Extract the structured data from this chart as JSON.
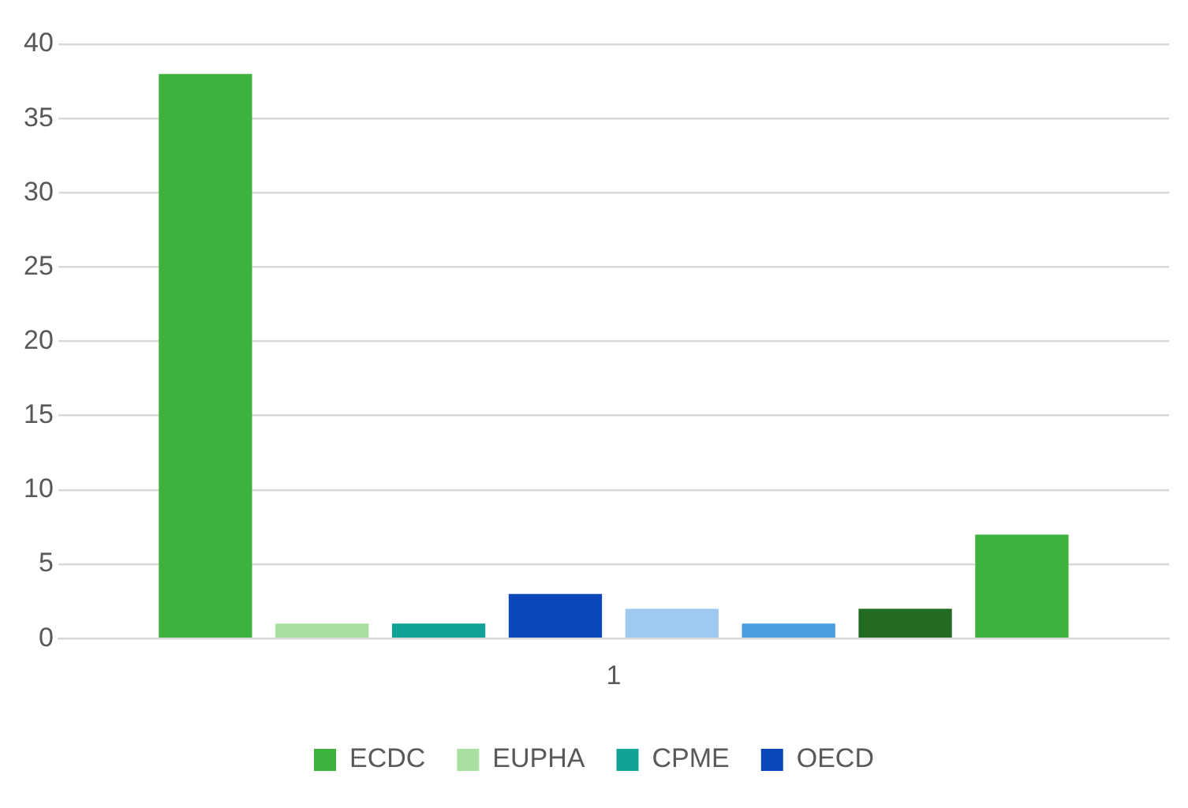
{
  "chart_data": {
    "type": "bar",
    "categories": [
      "1"
    ],
    "series": [
      {
        "name": "ECDC",
        "color": "#3db33d",
        "values": [
          38
        ]
      },
      {
        "name": "EUPHA",
        "color": "#a8e0a0",
        "values": [
          1
        ]
      },
      {
        "name": "CPME",
        "color": "#12a398",
        "values": [
          1
        ]
      },
      {
        "name": "OECD",
        "color": "#0a47b8",
        "values": [
          3
        ]
      },
      {
        "color": "#9fc9ef",
        "values": [
          2
        ]
      },
      {
        "color": "#4a9de0",
        "values": [
          1
        ]
      },
      {
        "color": "#236b22",
        "values": [
          2
        ]
      },
      {
        "color": "#3db33d",
        "values": [
          7
        ]
      }
    ],
    "ylim": [
      0,
      40
    ],
    "yticks": [
      0,
      5,
      10,
      15,
      20,
      25,
      30,
      35,
      40
    ],
    "grid": "y",
    "legend": "bottom"
  }
}
